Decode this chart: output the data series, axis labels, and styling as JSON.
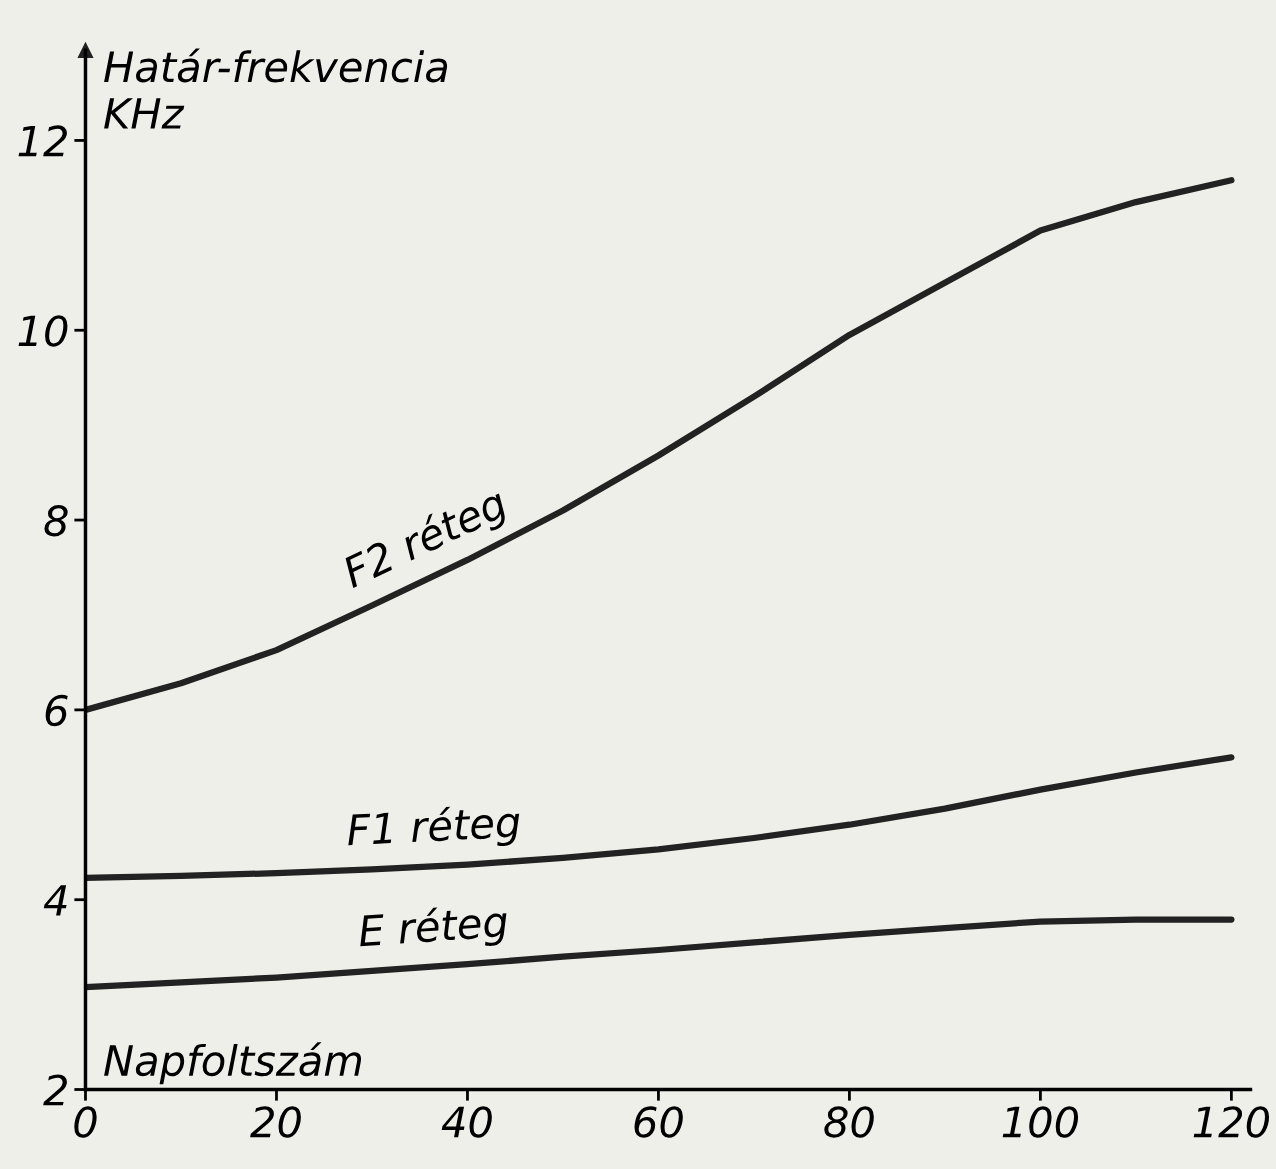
{
  "chart_data": {
    "type": "line",
    "xlabel": "Napfoltszám",
    "ylabel": "Határ-frekvencia\nKHz",
    "x": [
      0,
      10,
      20,
      30,
      40,
      50,
      60,
      70,
      80,
      90,
      100,
      110,
      120
    ],
    "series": [
      {
        "name": "F2 réteg",
        "color": "#222222",
        "values": [
          6.0,
          6.28,
          6.63,
          7.1,
          7.58,
          8.1,
          8.68,
          9.3,
          9.95,
          10.5,
          11.05,
          11.35,
          11.58
        ]
      },
      {
        "name": "F1 réteg",
        "color": "#222222",
        "values": [
          4.23,
          4.25,
          4.28,
          4.32,
          4.37,
          4.44,
          4.53,
          4.65,
          4.79,
          4.96,
          5.16,
          5.34,
          5.5
        ]
      },
      {
        "name": "E réteg",
        "color": "#222222",
        "values": [
          3.08,
          3.13,
          3.18,
          3.25,
          3.32,
          3.4,
          3.47,
          3.55,
          3.63,
          3.7,
          3.77,
          3.79,
          3.79
        ]
      }
    ],
    "xlim": [
      0,
      122
    ],
    "ylim": [
      2,
      12.95
    ],
    "xticks": [
      0,
      20,
      40,
      60,
      80,
      100,
      120
    ],
    "yticks": [
      2,
      4,
      6,
      8,
      10,
      12
    ],
    "grid": false,
    "legend": false,
    "marker": "none",
    "line_style": "solid"
  }
}
